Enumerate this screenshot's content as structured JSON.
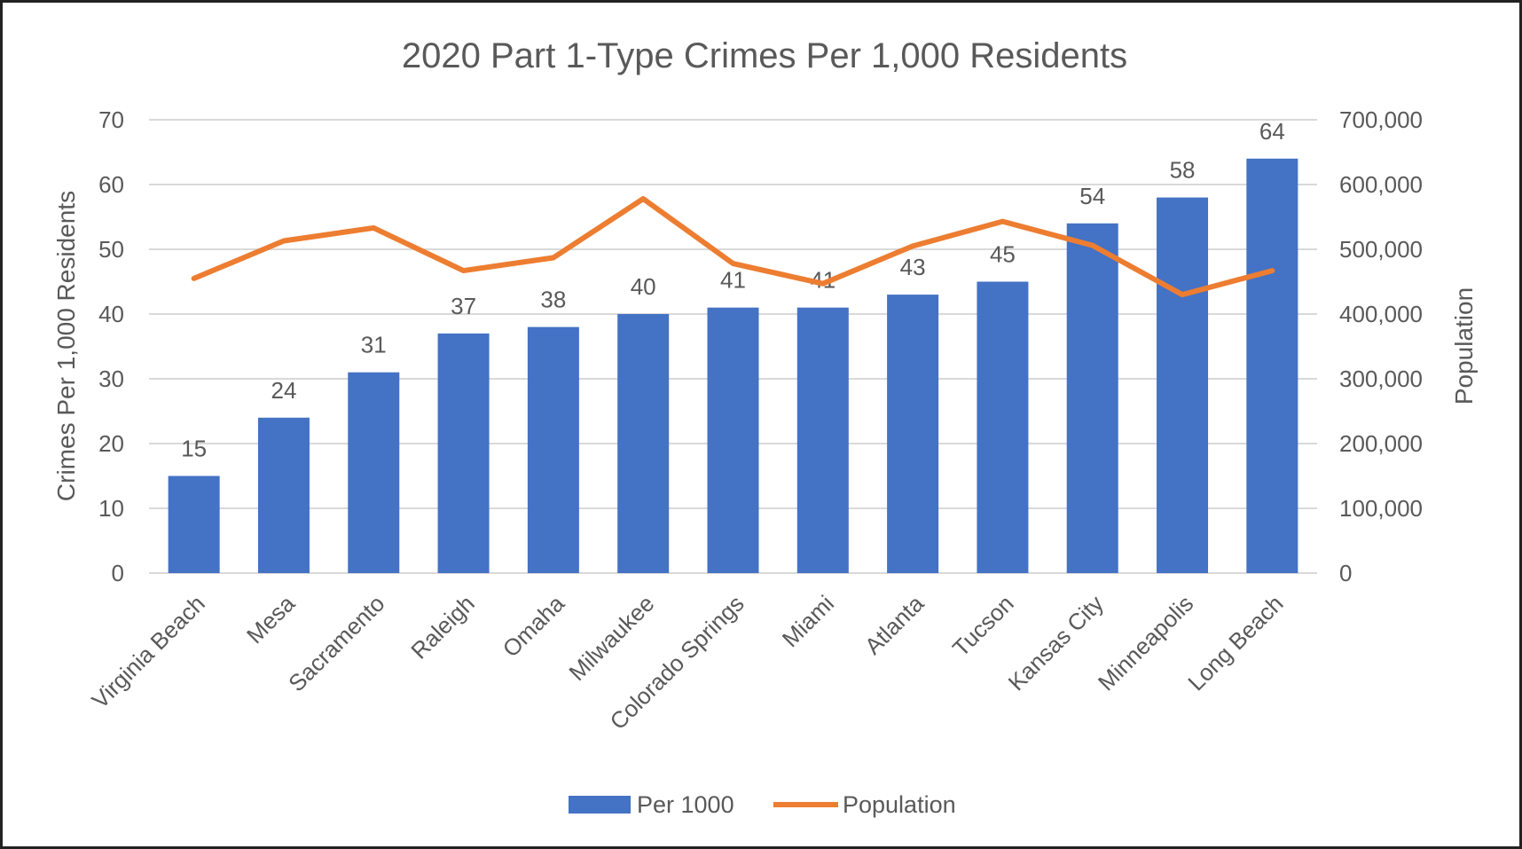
{
  "chart_data": {
    "type": "bar",
    "title": "2020 Part 1-Type Crimes Per 1,000 Residents",
    "ylabel": "Crimes Per 1,000 Residents",
    "y2label": "Population",
    "ylim": [
      0,
      70
    ],
    "y2lim": [
      0,
      700000
    ],
    "yticks": [
      "0",
      "10",
      "20",
      "30",
      "40",
      "50",
      "60",
      "70"
    ],
    "y2ticks": [
      "0",
      "100,000",
      "200,000",
      "300,000",
      "400,000",
      "500,000",
      "600,000",
      "700,000"
    ],
    "categories": [
      "Virginia Beach",
      "Mesa",
      "Sacramento",
      "Raleigh",
      "Omaha",
      "Milwaukee",
      "Colorado Springs",
      "Miami",
      "Atlanta",
      "Tucson",
      "Kansas City",
      "Minneapolis",
      "Long Beach"
    ],
    "series": [
      {
        "name": "Per 1000",
        "type": "bar",
        "axis": "left",
        "color": "#4472C4",
        "values": [
          15,
          24,
          31,
          37,
          38,
          40,
          41,
          41,
          43,
          45,
          54,
          58,
          64
        ],
        "labels": [
          "15",
          "24",
          "31",
          "37",
          "38",
          "40",
          "41",
          "41",
          "43",
          "45",
          "54",
          "58",
          "64"
        ]
      },
      {
        "name": "Population",
        "type": "line",
        "axis": "right",
        "color": "#ED7D31",
        "values": [
          455000,
          513000,
          533000,
          467000,
          487000,
          578000,
          478000,
          447000,
          505000,
          543000,
          506000,
          430000,
          467000
        ]
      }
    ],
    "grid": true,
    "legend_position": "bottom"
  }
}
